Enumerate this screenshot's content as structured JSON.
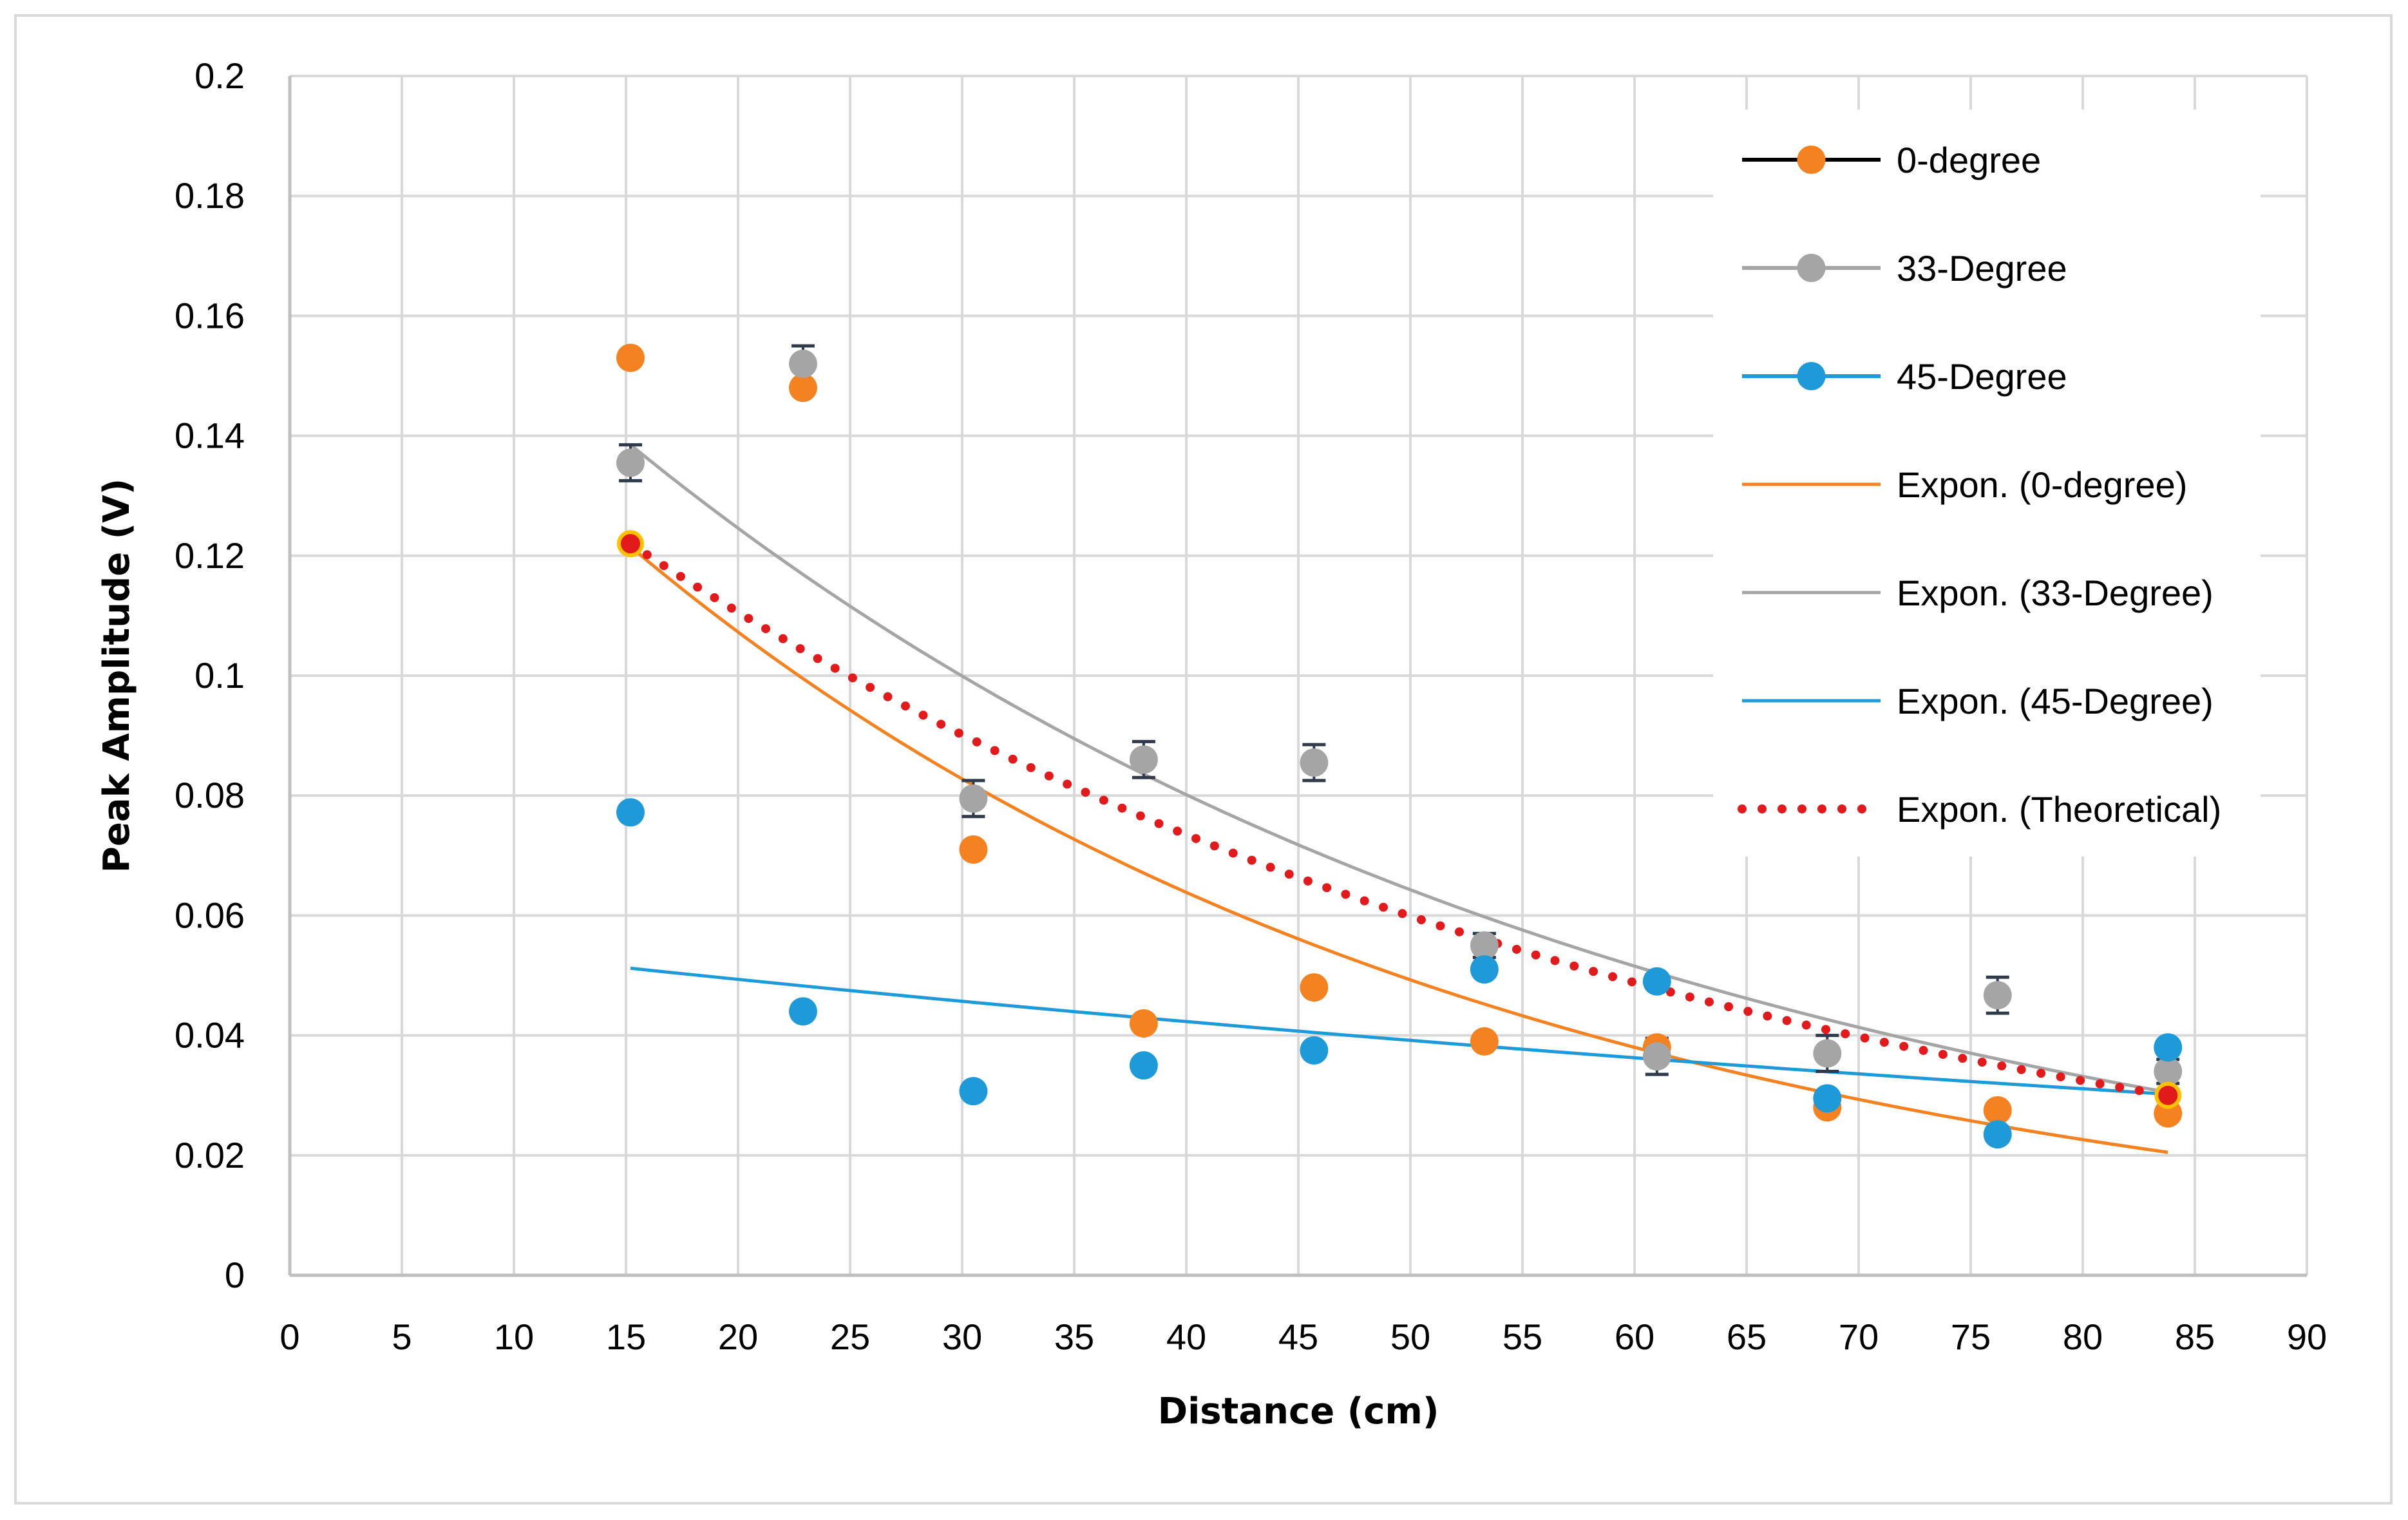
{
  "chart_data": {
    "type": "scatter",
    "title": "",
    "xlabel": "Distance (cm)",
    "ylabel": "Peak Amplitude (V)",
    "xlim": [
      0,
      90
    ],
    "ylim": [
      0,
      0.2
    ],
    "x_ticks": [
      "0",
      "5",
      "10",
      "15",
      "20",
      "25",
      "30",
      "35",
      "40",
      "45",
      "50",
      "55",
      "60",
      "65",
      "70",
      "75",
      "80",
      "85",
      "90"
    ],
    "y_ticks": [
      "0",
      "0.02",
      "0.04",
      "0.06",
      "0.08",
      "0.1",
      "0.12",
      "0.14",
      "0.16",
      "0.18",
      "0.2"
    ],
    "grid": true,
    "legend_position": "right",
    "series": [
      {
        "name": "0-degree",
        "color": "#f58220",
        "x": [
          15.2,
          22.9,
          30.5,
          38.1,
          45.7,
          53.3,
          61.0,
          68.6,
          76.2,
          83.8
        ],
        "y": [
          0.153,
          0.148,
          0.071,
          0.042,
          0.048,
          0.039,
          0.038,
          0.028,
          0.0275,
          0.027
        ]
      },
      {
        "name": "33-Degree",
        "color": "#a5a5a5",
        "x": [
          15.2,
          22.9,
          30.5,
          38.1,
          45.7,
          53.3,
          61.0,
          68.6,
          76.2,
          83.8
        ],
        "y": [
          0.1355,
          0.152,
          0.0795,
          0.086,
          0.0855,
          0.055,
          0.0365,
          0.037,
          0.0467,
          0.034
        ],
        "error": [
          0.003,
          0.003,
          0.003,
          0.003,
          0.003,
          0.002,
          0.003,
          0.003,
          0.003,
          0.002
        ]
      },
      {
        "name": "45-Degree",
        "color": "#1e9ad8",
        "x": [
          15.2,
          22.9,
          30.5,
          38.1,
          45.7,
          53.3,
          61.0,
          68.6,
          76.2,
          83.8
        ],
        "y": [
          0.0772,
          0.044,
          0.0307,
          0.035,
          0.0375,
          0.051,
          0.049,
          0.0295,
          0.0235,
          0.038
        ]
      },
      {
        "name": "Theoretical",
        "color": "#ffc000",
        "x": [
          15.2,
          83.8
        ],
        "y": [
          0.122,
          0.03
        ]
      }
    ],
    "trendlines": [
      {
        "name": "Expon. (0-degree)",
        "color": "#f58220",
        "style": "solid",
        "x_start": 15.2,
        "x_end": 83.8,
        "y_start": 0.1215,
        "y_end": 0.0205
      },
      {
        "name": "Expon. (33-Degree)",
        "color": "#a5a5a5",
        "style": "solid",
        "x_start": 15.2,
        "x_end": 83.8,
        "y_start": 0.1385,
        "y_end": 0.0305
      },
      {
        "name": "Expon. (45-Degree)",
        "color": "#1e9ad8",
        "style": "solid",
        "x_start": 15.2,
        "x_end": 83.8,
        "y_start": 0.0512,
        "y_end": 0.0302
      },
      {
        "name": "Expon. (Theoretical)",
        "color": "#e31a1c",
        "style": "dotted",
        "x_start": 15.2,
        "x_end": 83.8,
        "y_start": 0.122,
        "y_end": 0.03
      }
    ],
    "legend": [
      {
        "label": "0-degree",
        "kind": "marker-line",
        "line_color": "#000000",
        "marker_color": "#f58220"
      },
      {
        "label": "33-Degree",
        "kind": "marker-line",
        "line_color": "#a5a5a5",
        "marker_color": "#a5a5a5"
      },
      {
        "label": "45-Degree",
        "kind": "marker-line",
        "line_color": "#1e9ad8",
        "marker_color": "#1e9ad8"
      },
      {
        "label": "Expon. (0-degree)",
        "kind": "line",
        "line_color": "#f58220"
      },
      {
        "label": "Expon. (33-Degree)",
        "kind": "line",
        "line_color": "#a5a5a5"
      },
      {
        "label": "Expon. (45-Degree)",
        "kind": "line",
        "line_color": "#1e9ad8"
      },
      {
        "label": "Expon. (Theoretical)",
        "kind": "dotted",
        "line_color": "#e31a1c"
      }
    ]
  }
}
